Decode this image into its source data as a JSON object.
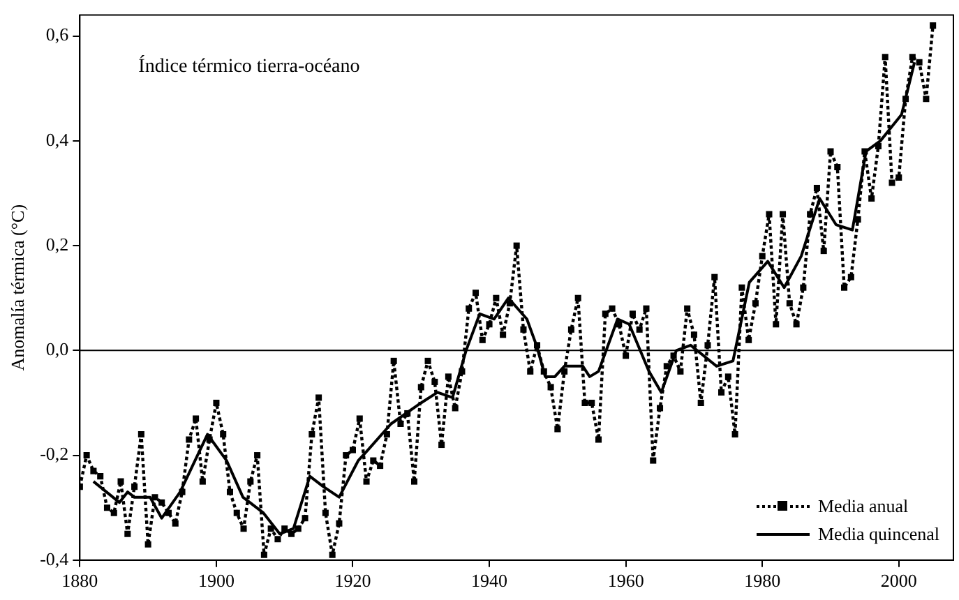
{
  "chart_data": {
    "type": "line",
    "ylabel": "Anomalía térmica (°C)",
    "annotations": [
      "Índice térmico tierra-océano"
    ],
    "x": [
      1880,
      1881,
      1882,
      1883,
      1884,
      1885,
      1886,
      1887,
      1888,
      1889,
      1890,
      1891,
      1892,
      1893,
      1894,
      1895,
      1896,
      1897,
      1898,
      1899,
      1900,
      1901,
      1902,
      1903,
      1904,
      1905,
      1906,
      1907,
      1908,
      1909,
      1910,
      1911,
      1912,
      1913,
      1914,
      1915,
      1916,
      1917,
      1918,
      1919,
      1920,
      1921,
      1922,
      1923,
      1924,
      1925,
      1926,
      1927,
      1928,
      1929,
      1930,
      1931,
      1932,
      1933,
      1934,
      1935,
      1936,
      1937,
      1938,
      1939,
      1940,
      1941,
      1942,
      1943,
      1944,
      1945,
      1946,
      1947,
      1948,
      1949,
      1950,
      1951,
      1952,
      1953,
      1954,
      1955,
      1956,
      1957,
      1958,
      1959,
      1960,
      1961,
      1962,
      1963,
      1964,
      1965,
      1966,
      1967,
      1968,
      1969,
      1970,
      1971,
      1972,
      1973,
      1974,
      1975,
      1976,
      1977,
      1978,
      1979,
      1980,
      1981,
      1982,
      1983,
      1984,
      1985,
      1986,
      1987,
      1988,
      1989,
      1990,
      1991,
      1992,
      1993,
      1994,
      1995,
      1996,
      1997,
      1998,
      1999,
      2000,
      2001,
      2002,
      2003,
      2004,
      2005
    ],
    "series": [
      {
        "name": "Media anual",
        "color": "#000000",
        "line_style": "dotted",
        "marker": "square",
        "values": [
          -0.26,
          -0.2,
          -0.23,
          -0.24,
          -0.3,
          -0.31,
          -0.25,
          -0.35,
          -0.26,
          -0.16,
          -0.37,
          -0.28,
          -0.29,
          -0.31,
          -0.33,
          -0.27,
          -0.17,
          -0.13,
          -0.25,
          -0.17,
          -0.1,
          -0.16,
          -0.27,
          -0.31,
          -0.34,
          -0.25,
          -0.2,
          -0.39,
          -0.34,
          -0.36,
          -0.34,
          -0.35,
          -0.34,
          -0.32,
          -0.16,
          -0.09,
          -0.31,
          -0.39,
          -0.33,
          -0.2,
          -0.19,
          -0.13,
          -0.25,
          -0.21,
          -0.22,
          -0.16,
          -0.02,
          -0.14,
          -0.12,
          -0.25,
          -0.07,
          -0.02,
          -0.06,
          -0.18,
          -0.05,
          -0.11,
          -0.04,
          0.08,
          0.11,
          0.02,
          0.05,
          0.1,
          0.03,
          0.09,
          0.2,
          0.04,
          -0.04,
          0.01,
          -0.04,
          -0.07,
          -0.15,
          -0.04,
          0.04,
          0.1,
          -0.1,
          -0.1,
          -0.17,
          0.07,
          0.08,
          0.05,
          -0.01,
          0.07,
          0.04,
          0.08,
          -0.21,
          -0.11,
          -0.03,
          -0.01,
          -0.04,
          0.08,
          0.03,
          -0.1,
          0.01,
          0.14,
          -0.08,
          -0.05,
          -0.16,
          0.12,
          0.02,
          0.09,
          0.18,
          0.26,
          0.05,
          0.26,
          0.09,
          0.05,
          0.12,
          0.26,
          0.31,
          0.19,
          0.38,
          0.35,
          0.12,
          0.14,
          0.25,
          0.38,
          0.29,
          0.39,
          0.56,
          0.32,
          0.33,
          0.48,
          0.56,
          0.55,
          0.48,
          0.62
        ]
      },
      {
        "name": "Media quincenal",
        "color": "#000000",
        "line_style": "solid",
        "marker": "none",
        "x": [
          1882,
          1885.8,
          1887,
          1888,
          1890.3,
          1892,
          1894.7,
          1898.7,
          1901.5,
          1903.9,
          1906.9,
          1909.3,
          1911.3,
          1913.7,
          1915.7,
          1918,
          1920.8,
          1922.2,
          1925.6,
          1930,
          1932.4,
          1934.6,
          1936.6,
          1938.6,
          1940.7,
          1942.8,
          1945.5,
          1946.9,
          1948.2,
          1949.6,
          1951,
          1953.7,
          1954.7,
          1956,
          1958.8,
          1960.5,
          1963.4,
          1965.2,
          1967.4,
          1969.5,
          1973.3,
          1975.7,
          1978.1,
          1980.8,
          1983.2,
          1985.7,
          1988.4,
          1990.8,
          1993.2,
          1995.2,
          1997.3,
          2000.4,
          2002.3
        ],
        "values": [
          -0.25,
          -0.29,
          -0.27,
          -0.28,
          -0.28,
          -0.32,
          -0.27,
          -0.16,
          -0.21,
          -0.28,
          -0.31,
          -0.35,
          -0.34,
          -0.24,
          -0.26,
          -0.28,
          -0.21,
          -0.19,
          -0.14,
          -0.1,
          -0.08,
          -0.09,
          0,
          0.07,
          0.06,
          0.1,
          0.06,
          0.01,
          -0.05,
          -0.05,
          -0.03,
          -0.03,
          -0.05,
          -0.04,
          0.06,
          0.05,
          -0.04,
          -0.08,
          0,
          0.01,
          -0.03,
          -0.02,
          0.13,
          0.17,
          0.12,
          0.18,
          0.29,
          0.24,
          0.23,
          0.38,
          0.4,
          0.45,
          0.55
        ]
      }
    ],
    "xlim": [
      1880,
      2008
    ],
    "xticks": [
      1880,
      1900,
      1920,
      1940,
      1960,
      1980,
      2000
    ],
    "ylim": [
      -0.4,
      0.64
    ],
    "yticks": [
      {
        "value": -0.4,
        "label": "-0,4"
      },
      {
        "value": -0.2,
        "label": "-0,2"
      },
      {
        "value": 0,
        "label": "0,0"
      },
      {
        "value": 0.2,
        "label": "0,2"
      },
      {
        "value": 0.4,
        "label": "0,4"
      },
      {
        "value": 0.6,
        "label": "0,6"
      }
    ],
    "ref_lines": [
      {
        "axis": "y",
        "value": 0,
        "label": null
      }
    ],
    "grid": false,
    "legend": "bottom right"
  }
}
